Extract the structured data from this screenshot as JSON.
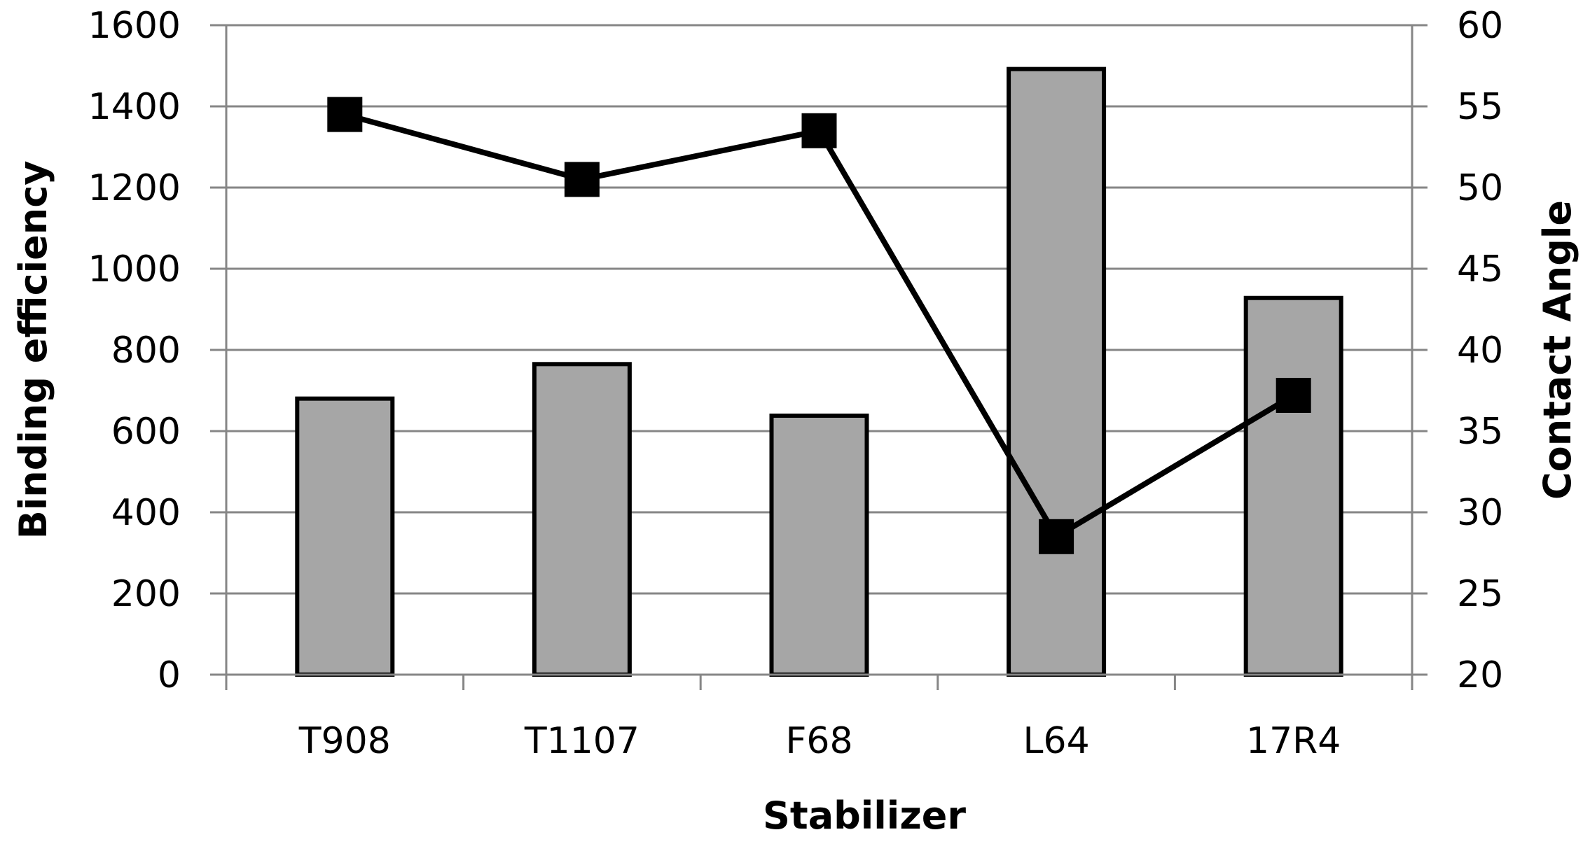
{
  "chart_data": {
    "type": "bar",
    "categories": [
      "T908",
      "T1107",
      "F68",
      "L64",
      "17R4"
    ],
    "xlabel": "Stabilizer",
    "ylabel": "Binding efficiency",
    "y2label": "Contact Angle",
    "ylim": [
      0,
      1600
    ],
    "y2lim": [
      20,
      60
    ],
    "yticks": [
      "0",
      "200",
      "400",
      "600",
      "800",
      "1000",
      "1200",
      "1400",
      "1600"
    ],
    "y2ticks": [
      "20",
      "25",
      "30",
      "35",
      "40",
      "45",
      "50",
      "55",
      "60"
    ],
    "grid": true,
    "series": [
      {
        "type": "bar",
        "axis": "left",
        "values": [
          680,
          765,
          638,
          1492,
          928
        ]
      },
      {
        "type": "line",
        "axis": "right",
        "marker": "square",
        "values": [
          54.5,
          50.5,
          53.5,
          28.5,
          37.2
        ]
      }
    ],
    "colors": {
      "bar_fill": "#a6a6a6",
      "bar_stroke": "#000000",
      "line": "#000000",
      "grid": "#868686",
      "axis": "#868686"
    }
  }
}
